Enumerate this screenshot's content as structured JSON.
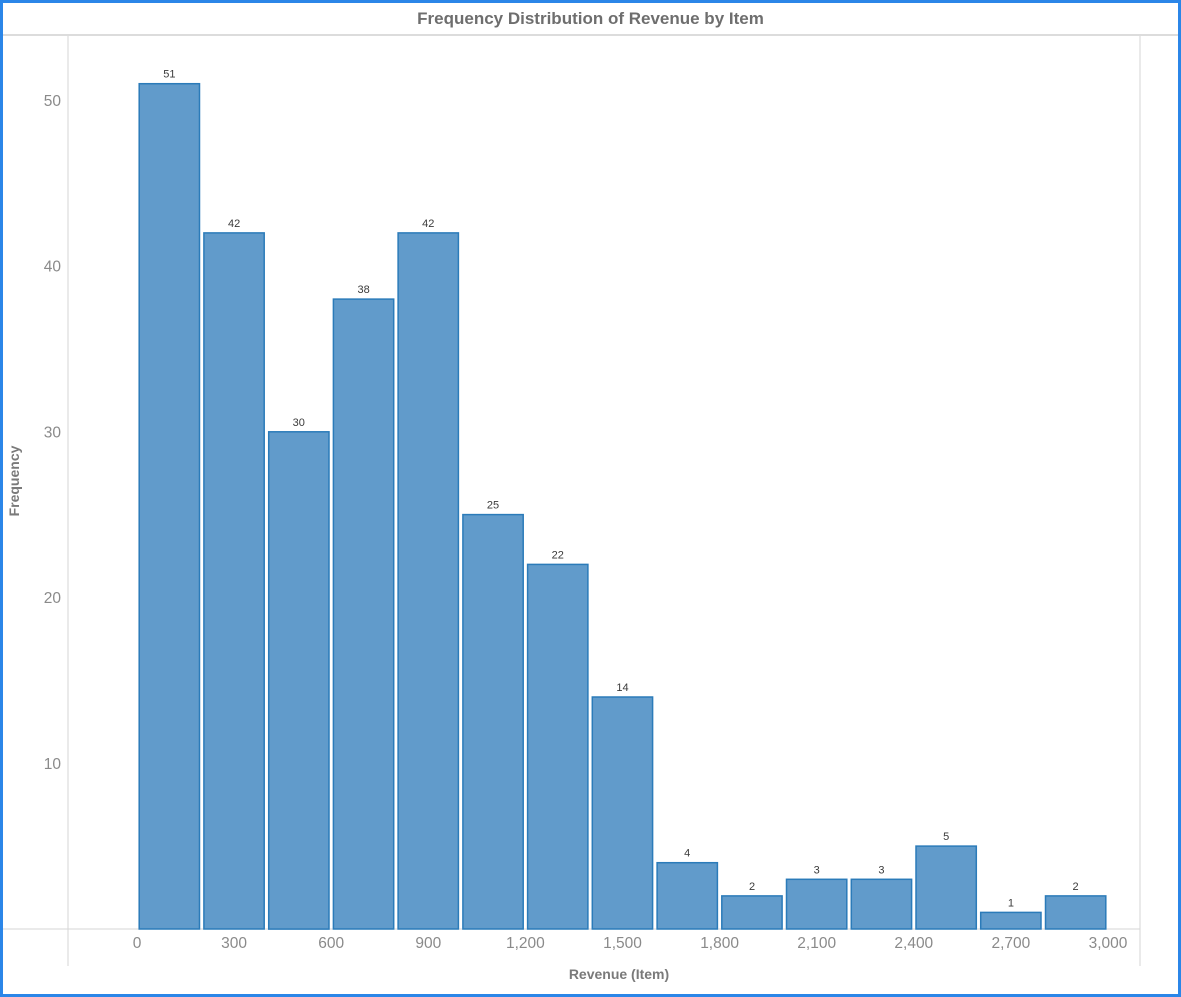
{
  "page": {
    "title": "Frequency Distribution of Revenue by Item"
  },
  "chart_data": {
    "type": "bar",
    "subtype": "histogram",
    "title": "Frequency Distribution of Revenue by Item",
    "xlabel": "Revenue (Item)",
    "ylabel": "Frequency",
    "bin_width": 200,
    "bin_starts": [
      0,
      200,
      400,
      600,
      800,
      1000,
      1200,
      1400,
      1600,
      1800,
      2000,
      2200,
      2400,
      2600,
      2800
    ],
    "values": [
      51,
      42,
      30,
      38,
      42,
      25,
      22,
      14,
      4,
      2,
      3,
      3,
      5,
      1,
      2
    ],
    "x_ticks": [
      {
        "value": 0,
        "label": "0"
      },
      {
        "value": 300,
        "label": "300"
      },
      {
        "value": 600,
        "label": "600"
      },
      {
        "value": 900,
        "label": "900"
      },
      {
        "value": 1200,
        "label": "1,200"
      },
      {
        "value": 1500,
        "label": "1,500"
      },
      {
        "value": 1800,
        "label": "1,800"
      },
      {
        "value": 2100,
        "label": "2,100"
      },
      {
        "value": 2400,
        "label": "2,400"
      },
      {
        "value": 2700,
        "label": "2,700"
      },
      {
        "value": 3000,
        "label": "3,000"
      }
    ],
    "y_ticks": [
      10,
      20,
      30,
      40,
      50
    ],
    "xlim": [
      0,
      3000
    ],
    "ylim": [
      0,
      54
    ],
    "grid": false,
    "legend": null,
    "bar_value_labels_shown": true
  },
  "appearance": {
    "page_border_color": "#2b86e8",
    "title_color": "#6e6e6e",
    "divider_color": "#dcdcdc",
    "bar_fill": "#619bcb",
    "bar_stroke": "#2b7bb9",
    "axis_line_color": "#d6d6d6",
    "tick_label_color": "#8a8a8a",
    "axis_title_color": "#7a7a7a",
    "bar_label_color": "#3a3a3a",
    "background": "#ffffff"
  }
}
